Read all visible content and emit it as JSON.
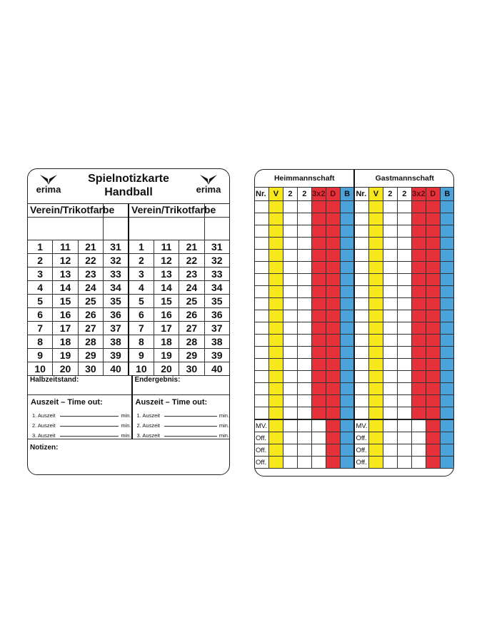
{
  "left_card": {
    "title_line1": "Spielnotizkarte",
    "title_line2": "Handball",
    "brand": "erima",
    "team_header": "Verein/Trikotfarbe",
    "numbers": [
      [
        1,
        11,
        21,
        31
      ],
      [
        2,
        12,
        22,
        32
      ],
      [
        3,
        13,
        23,
        33
      ],
      [
        4,
        14,
        24,
        34
      ],
      [
        5,
        15,
        25,
        35
      ],
      [
        6,
        16,
        26,
        36
      ],
      [
        7,
        17,
        27,
        37
      ],
      [
        8,
        18,
        28,
        38
      ],
      [
        9,
        19,
        29,
        39
      ],
      [
        10,
        20,
        30,
        40
      ]
    ],
    "halftime_label": "Halbzeitstand:",
    "final_label": "Endergebnis:",
    "timeout_title": "Auszeit – Time out:",
    "timeouts": [
      "1. Auszeit",
      "2. Auszeit",
      "3. Auszeit"
    ],
    "min_label": "min.",
    "notes_label": "Notizen:"
  },
  "right_card": {
    "home_title": "Heimmannschaft",
    "away_title": "Gastmannschaft",
    "columns": [
      "Nr.",
      "V",
      "2",
      "2",
      "3x2",
      "D",
      "B"
    ],
    "column_colors": {
      "V": "#f7e81c",
      "3x2": "#e5313a",
      "D": "#e5313a",
      "B": "#4aa3db"
    },
    "player_rows": 18,
    "official_rows": [
      "MV.",
      "Off.",
      "Off.",
      "Off."
    ]
  }
}
